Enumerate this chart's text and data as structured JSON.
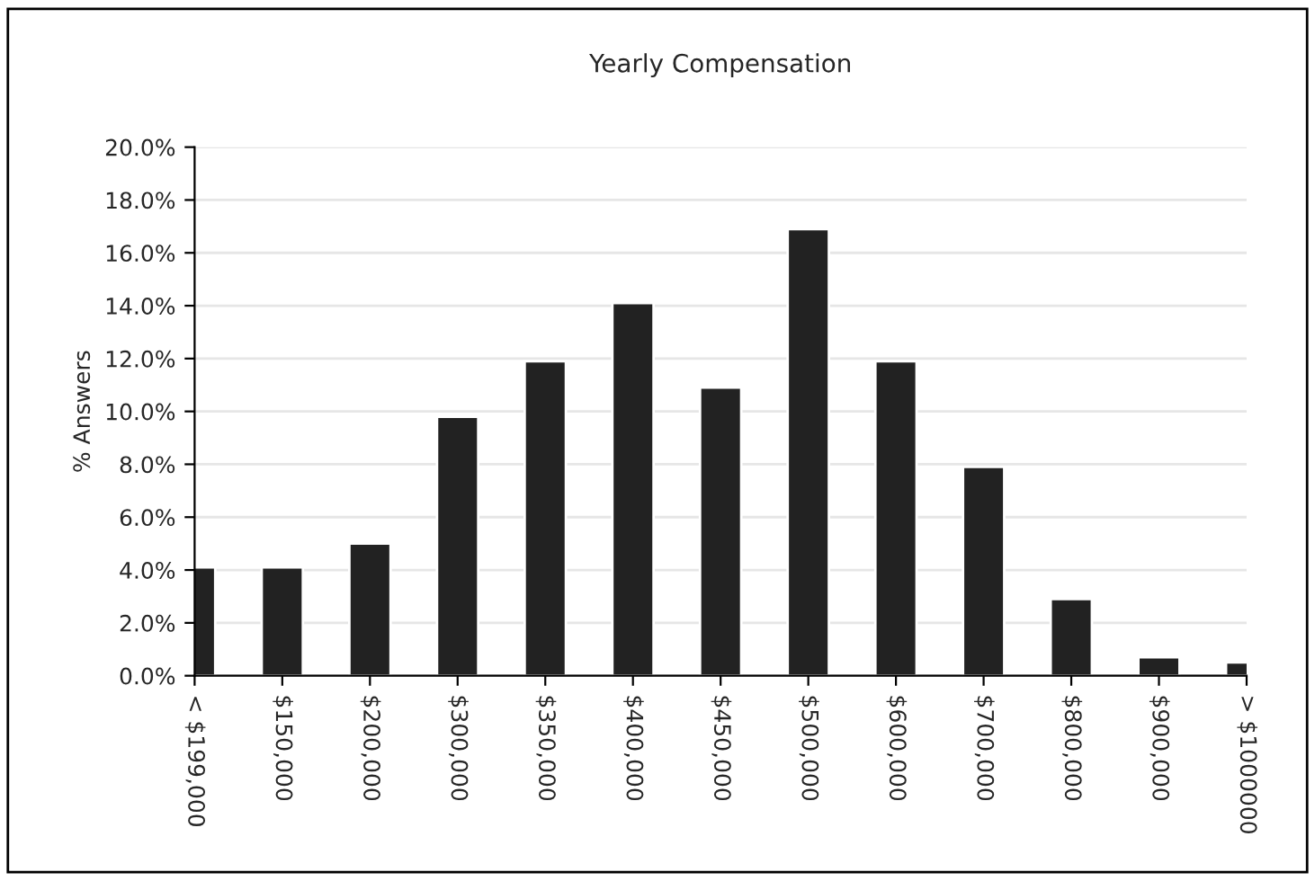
{
  "chart_data": {
    "type": "bar",
    "title": "Yearly Compensation",
    "ylabel": "% Answers",
    "categories": [
      "< $199,000",
      "$150,000",
      "$200,000",
      "$300,000",
      "$350,000",
      "$400,000",
      "$450,000",
      "$500,000",
      "$600,000",
      "$700,000",
      "$800,000",
      "$900,000",
      "> $1000000"
    ],
    "values": [
      4.1,
      4.1,
      5.0,
      9.8,
      11.9,
      14.1,
      10.9,
      16.9,
      11.9,
      7.9,
      2.9,
      0.7,
      0.5
    ],
    "color": "#222222",
    "ylim": [
      0,
      20
    ],
    "yticks": [
      {
        "value": 0,
        "label": "0.0%"
      },
      {
        "value": 2,
        "label": "2.0%"
      },
      {
        "value": 4,
        "label": "4.0%"
      },
      {
        "value": 6,
        "label": "6.0%"
      },
      {
        "value": 8,
        "label": "8.0%"
      },
      {
        "value": 10,
        "label": "10.0%"
      },
      {
        "value": 12,
        "label": "12.0%"
      },
      {
        "value": 14,
        "label": "14.0%"
      },
      {
        "value": 16,
        "label": "16.0%"
      },
      {
        "value": 18,
        "label": "18.0%"
      },
      {
        "value": 20,
        "label": "20.0%"
      }
    ],
    "grid": "y"
  }
}
